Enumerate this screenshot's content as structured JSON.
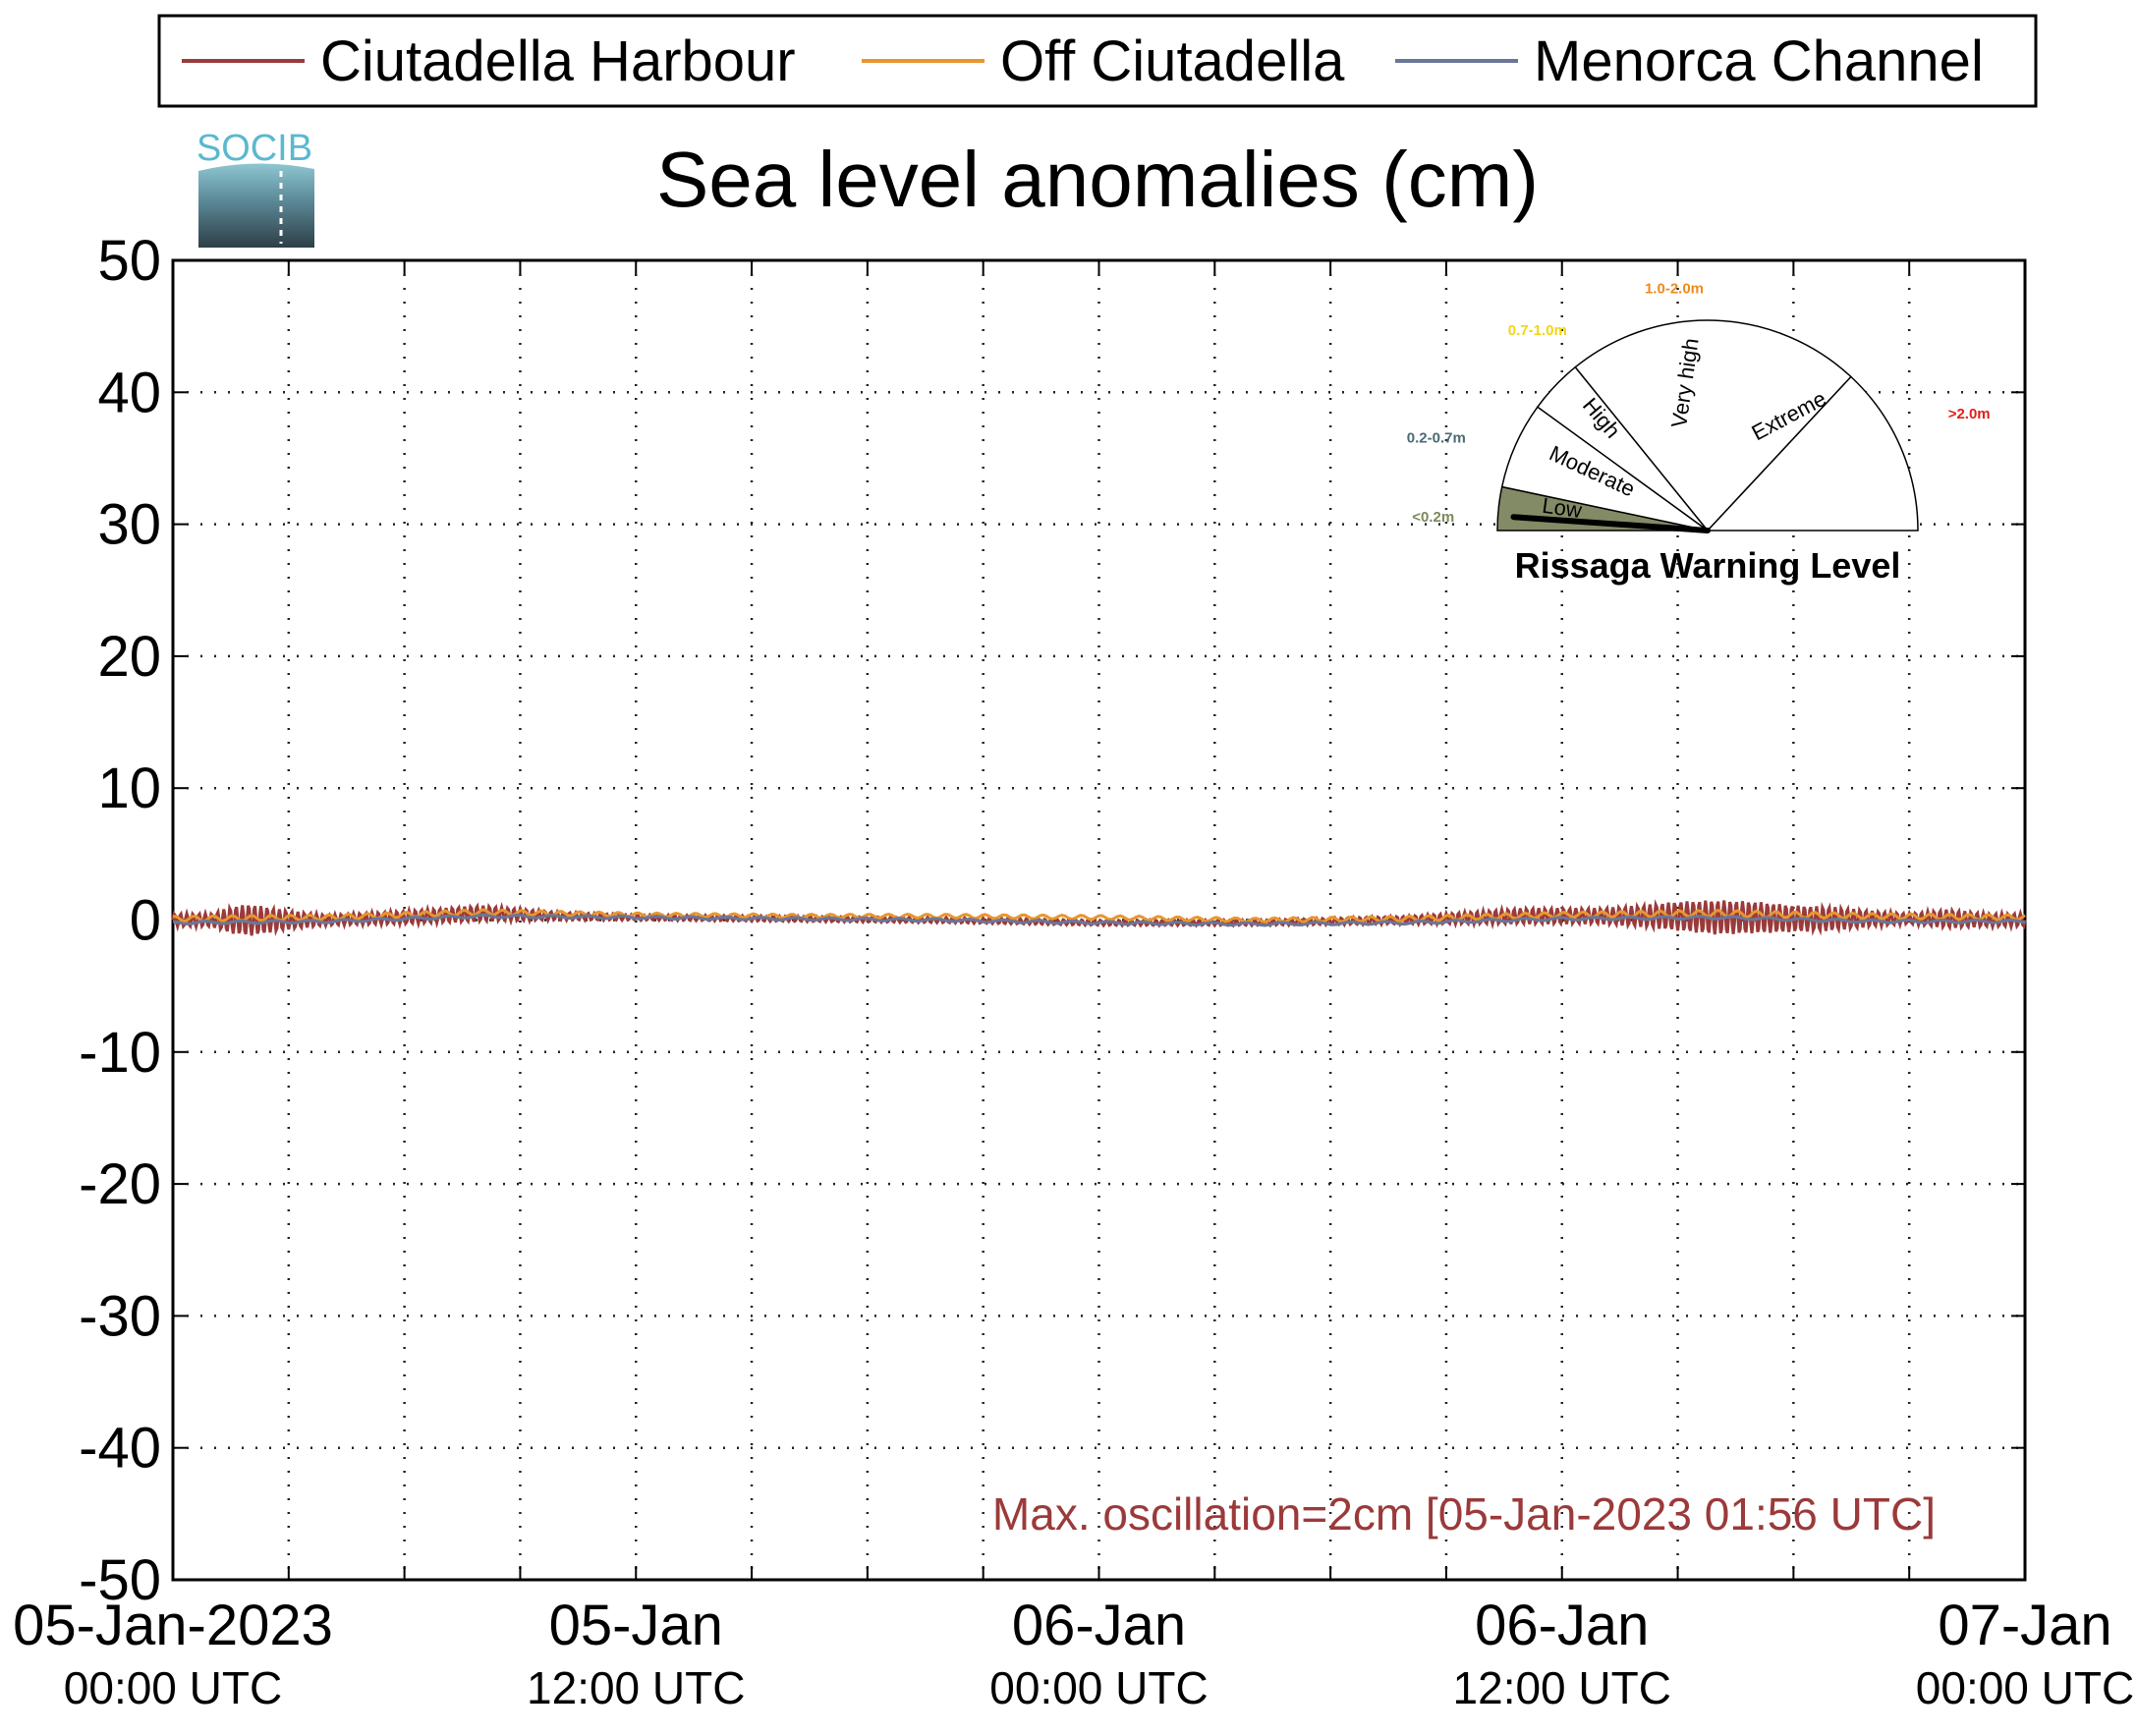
{
  "chart_data": {
    "type": "line",
    "title": "Sea level anomalies (cm)",
    "ylim": [
      -50,
      50
    ],
    "yticks": [
      50,
      40,
      30,
      20,
      10,
      0,
      -10,
      -20,
      -30,
      -40,
      -50
    ],
    "xlim_hours": [
      0,
      48
    ],
    "xtick_labels": [
      {
        "hour": 0,
        "main": "05-Jan-2023",
        "sub": "00:00 UTC"
      },
      {
        "hour": 12,
        "main": "05-Jan",
        "sub": "12:00 UTC"
      },
      {
        "hour": 24,
        "main": "06-Jan",
        "sub": "00:00 UTC"
      },
      {
        "hour": 36,
        "main": "06-Jan",
        "sub": "12:00 UTC"
      },
      {
        "hour": 48,
        "main": "07-Jan",
        "sub": "00:00 UTC"
      }
    ],
    "grid": true,
    "legend_position": "top",
    "series": [
      {
        "name": "Ciutadella Harbour",
        "color": "#9b3a3a",
        "hours": [
          0,
          1,
          1.5,
          2,
          3,
          4,
          6,
          8,
          10,
          12,
          16,
          20,
          24,
          28,
          32,
          34,
          35,
          36,
          37,
          38,
          39,
          40,
          41,
          42,
          43,
          44,
          45,
          46,
          47,
          48
        ],
        "amplitude_cm": [
          0.5,
          0.5,
          1.0,
          1.2,
          0.7,
          0.4,
          0.5,
          0.6,
          0.3,
          0.2,
          0.2,
          0.2,
          0.2,
          0.2,
          0.3,
          0.5,
          0.6,
          0.6,
          0.6,
          0.8,
          1.1,
          1.3,
          1.2,
          1.0,
          0.9,
          0.6,
          0.4,
          0.7,
          0.5,
          0.5
        ],
        "offset_cm": [
          0,
          0,
          0,
          0,
          0,
          0,
          0.2,
          0.5,
          0.3,
          0.2,
          0.1,
          0,
          -0.2,
          -0.2,
          0,
          0.2,
          0.3,
          0.3,
          0.3,
          0.3,
          0.3,
          0.2,
          0.2,
          0.1,
          0.1,
          0.1,
          0.1,
          0.1,
          0,
          0
        ]
      },
      {
        "name": "Off Ciutadella",
        "color": "#e8962e",
        "hours": [
          0,
          4,
          8,
          12,
          16,
          20,
          24,
          28,
          32,
          36,
          40,
          44,
          48
        ],
        "amplitude_cm": [
          0.2,
          0.2,
          0.2,
          0.15,
          0.15,
          0.15,
          0.15,
          0.15,
          0.2,
          0.2,
          0.25,
          0.2,
          0.2
        ],
        "offset_cm": [
          0.1,
          0.2,
          0.6,
          0.4,
          0.3,
          0.3,
          0.2,
          0,
          0.1,
          0.4,
          0.5,
          0.3,
          0.2
        ]
      },
      {
        "name": "Menorca Channel",
        "color": "#6a7799",
        "hours": [
          0,
          4,
          8,
          12,
          16,
          20,
          24,
          28,
          32,
          36,
          40,
          44,
          48
        ],
        "amplitude_cm": [
          0.1,
          0.1,
          0.1,
          0.1,
          0.1,
          0.1,
          0.1,
          0.1,
          0.1,
          0.1,
          0.1,
          0.1,
          0.1
        ],
        "offset_cm": [
          -0.2,
          -0.1,
          0.3,
          0.2,
          0.1,
          0,
          -0.2,
          -0.3,
          -0.2,
          0.1,
          0.2,
          -0.1,
          -0.1
        ]
      }
    ],
    "annotation": {
      "text": "Max. oscillation=2cm [05-Jan-2023 01:56 UTC]",
      "color": "#9b3a3a"
    }
  },
  "logo": {
    "text": "SOCIB"
  },
  "gauge": {
    "title": "Rissaga Warning Level",
    "current_level": "Low",
    "sectors": [
      {
        "label": "Low",
        "range": "<0.2m",
        "range_color": "#7b8a5a",
        "fill": "#838b66",
        "active": true
      },
      {
        "label": "Moderate",
        "range": "0.2-0.7m",
        "range_color": "#4a6a73",
        "fill": "#ffffff",
        "active": false
      },
      {
        "label": "High",
        "range": "0.7-1.0m",
        "range_color": "#f2d515",
        "fill": "#ffffff",
        "active": false
      },
      {
        "label": "Very high",
        "range": "1.0-2.0m",
        "range_color": "#f08a1c",
        "fill": "#ffffff",
        "active": false
      },
      {
        "label": "Extreme",
        "range": ">2.0m",
        "range_color": "#e0201a",
        "fill": "#ffffff",
        "active": false
      }
    ]
  }
}
